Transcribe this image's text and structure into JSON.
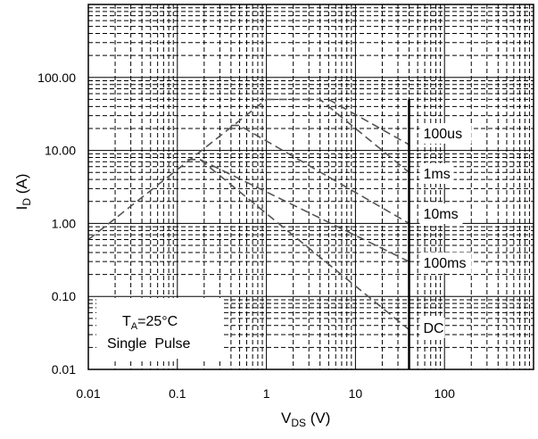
{
  "chart_data": {
    "type": "line",
    "title": "",
    "xlabel": "V",
    "xlabel_sub": "DS",
    "xlabel_unit": " (V)",
    "ylabel": "I",
    "ylabel_sub": "D",
    "ylabel_unit": " (A)",
    "x_scale": "log",
    "y_scale": "log",
    "xlim": [
      0.01,
      1000
    ],
    "ylim": [
      0.01,
      1000
    ],
    "x_ticks": [
      0.01,
      0.1,
      1,
      10,
      100
    ],
    "x_tick_labels": [
      "0.01",
      "0.1",
      "1",
      "10",
      "100"
    ],
    "y_ticks": [
      0.01,
      0.1,
      1,
      10,
      100
    ],
    "y_tick_labels": [
      "0.01",
      "0.10",
      "1.00",
      "10.00",
      "100.00"
    ],
    "grid": true,
    "rds_limit_line": {
      "x": [
        0.01,
        1
      ],
      "y": [
        0.6,
        50
      ]
    },
    "vds_limit": 40,
    "series": [
      {
        "name": "100us",
        "x": [
          5,
          40
        ],
        "y": [
          50,
          12
        ]
      },
      {
        "name": "1ms",
        "x": [
          1,
          4,
          40
        ],
        "y": [
          50,
          50,
          5
        ]
      },
      {
        "name": "10ms",
        "x": [
          0.4,
          0.5,
          40
        ],
        "y": [
          22,
          22,
          1
        ]
      },
      {
        "name": "100ms",
        "x": [
          0.13,
          0.18,
          40
        ],
        "y": [
          7.5,
          7.5,
          0.3
        ]
      },
      {
        "name": "DC",
        "x": [
          0.18,
          40
        ],
        "y": [
          7.5,
          0.035
        ]
      }
    ],
    "annotation": {
      "line1_main": "T",
      "line1_sub": "A",
      "line1_rest": "=25°C",
      "line2": "Single  Pulse"
    }
  }
}
